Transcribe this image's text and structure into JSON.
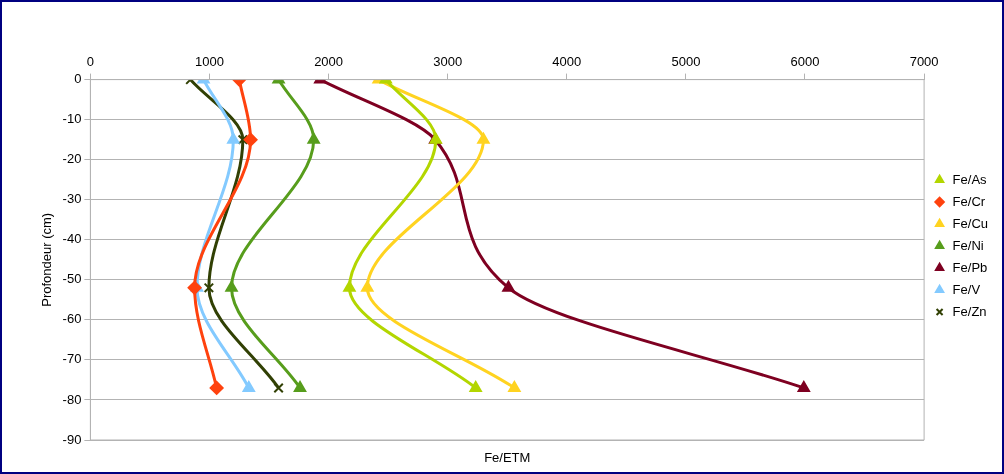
{
  "chart_data": {
    "type": "line",
    "orientation": "horizontal",
    "xlabel": "Fe/ETM",
    "ylabel": "Profondeur (cm)",
    "xlim": [
      0,
      7000
    ],
    "xticks": [
      0,
      1000,
      2000,
      3000,
      4000,
      5000,
      6000,
      7000
    ],
    "ylim": [
      -90,
      0
    ],
    "yticks": [
      -90,
      -80,
      -70,
      -60,
      -50,
      -40,
      -30,
      -20,
      -10,
      0
    ],
    "grid": "y",
    "legend": "right",
    "series": [
      {
        "name": "Fe/As",
        "color": "#b3d600",
        "marker": "triangle",
        "x": [
          0,
          -15,
          -52,
          -77
        ],
        "values": [
          2480,
          2900,
          2175,
          3235
        ]
      },
      {
        "name": "Fe/Cr",
        "color": "#ff420e",
        "marker": "diamond",
        "x": [
          0,
          -15,
          -52,
          -77
        ],
        "values": [
          1250,
          1345,
          875,
          1060
        ]
      },
      {
        "name": "Fe/Cu",
        "color": "#ffd320",
        "marker": "triangle",
        "x": [
          0,
          -15,
          -52,
          -77
        ],
        "values": [
          2420,
          3300,
          2325,
          3560
        ]
      },
      {
        "name": "Fe/Ni",
        "color": "#579d1c",
        "marker": "triangle",
        "x": [
          0,
          -15,
          -52,
          -77
        ],
        "values": [
          1580,
          1875,
          1185,
          1760
        ]
      },
      {
        "name": "Fe/Pb",
        "color": "#7e0021",
        "marker": "triangle",
        "x": [
          0,
          -15,
          -52,
          -77
        ],
        "values": [
          1930,
          2895,
          3510,
          5990
        ]
      },
      {
        "name": "Fe/V",
        "color": "#83caff",
        "marker": "triangle",
        "x": [
          0,
          -15,
          -52,
          -77
        ],
        "values": [
          950,
          1200,
          895,
          1330
        ]
      },
      {
        "name": "Fe/Zn",
        "color": "#314004",
        "marker": "cross",
        "x": [
          0,
          -15,
          -52,
          -77
        ],
        "values": [
          840,
          1280,
          995,
          1580
        ]
      }
    ]
  }
}
